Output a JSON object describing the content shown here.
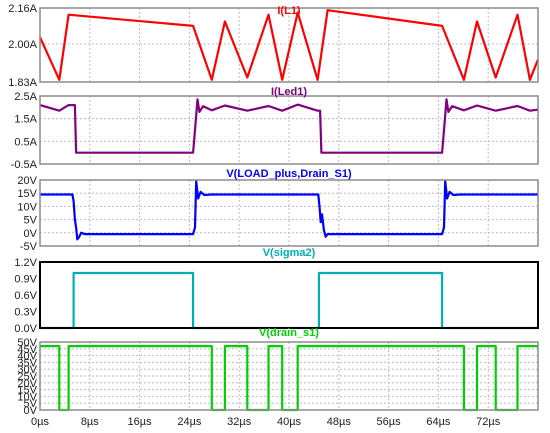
{
  "colors": {
    "background": "#ffffff",
    "grid": "#bdbdbd",
    "frame_default": "#8c8c8c",
    "frame_active": "#000000"
  },
  "chart_data": [
    {
      "type": "line",
      "title": "I(L1)",
      "color": "#ff0000",
      "ylim": [
        1.83,
        2.16
      ],
      "yticks": [
        1.83,
        2.0,
        2.16
      ],
      "yticklabels": [
        "1.83A",
        "2.00A",
        "2.16A"
      ],
      "grid": true,
      "x": [
        0,
        3.1,
        4.6,
        24.6,
        27.6,
        29.7,
        33.3,
        36.7,
        38.9,
        41.4,
        44.6,
        46.2,
        64.6,
        68.1,
        70.2,
        73.2,
        76.7,
        78.7,
        80.0
      ],
      "values": [
        2.03,
        1.84,
        2.13,
        2.08,
        1.84,
        2.1,
        1.85,
        2.13,
        1.84,
        2.14,
        1.84,
        2.15,
        2.08,
        1.84,
        2.1,
        1.85,
        2.13,
        1.84,
        1.93
      ]
    },
    {
      "type": "line",
      "title": "I(Led1)",
      "color": "#800080",
      "ylim": [
        -0.5,
        2.5
      ],
      "yticks": [
        -0.5,
        0.5,
        1.5,
        2.5
      ],
      "yticklabels": [
        "-0.5A",
        "0.5A",
        "1.5A",
        "2.5A"
      ],
      "grid": true,
      "x": [
        0,
        3.1,
        4.6,
        5.6,
        5.8,
        24.6,
        24.9,
        25.3,
        25.6,
        26.2,
        27.6,
        29.7,
        33.3,
        36.7,
        38.9,
        41.4,
        44.6,
        45.0,
        45.2,
        64.6,
        64.9,
        65.3,
        65.6,
        66.2,
        68.1,
        70.2,
        73.2,
        76.7,
        78.7,
        80.0
      ],
      "values": [
        2.1,
        1.85,
        2.1,
        2.1,
        0.0,
        0.0,
        1.0,
        2.35,
        1.8,
        2.05,
        1.87,
        2.08,
        1.85,
        2.06,
        1.85,
        2.12,
        1.85,
        1.85,
        0.0,
        0.0,
        1.0,
        2.35,
        1.8,
        2.05,
        1.87,
        2.08,
        1.85,
        2.06,
        1.85,
        1.9
      ]
    },
    {
      "type": "line",
      "title": "V(LOAD_plus,Drain_S1)",
      "color": "#0000ff",
      "ylim": [
        -5,
        20
      ],
      "yticks": [
        -5,
        0,
        5,
        10,
        15,
        20
      ],
      "yticklabels": [
        "-5V",
        "0V",
        "5V",
        "10V",
        "15V",
        "20V"
      ],
      "grid": true,
      "x": [
        0,
        5.2,
        5.4,
        5.6,
        5.8,
        6.0,
        6.3,
        6.6,
        7.2,
        24.6,
        24.9,
        25.1,
        25.4,
        25.8,
        26.4,
        27.5,
        44.7,
        44.9,
        45.1,
        45.3,
        45.6,
        45.9,
        46.2,
        46.8,
        64.6,
        64.9,
        65.1,
        65.4,
        65.8,
        66.4,
        67.5,
        80.0
      ],
      "values": [
        14.5,
        14.5,
        12.0,
        5.0,
        2.0,
        -2.5,
        -1.5,
        0.0,
        -0.5,
        -0.5,
        2.0,
        19.5,
        13.0,
        15.5,
        14.3,
        14.5,
        14.5,
        10.0,
        4.0,
        7.0,
        1.0,
        -1.5,
        -0.5,
        -0.5,
        -0.5,
        2.0,
        19.5,
        13.0,
        15.5,
        14.3,
        14.5,
        14.5
      ]
    },
    {
      "type": "line",
      "title": "V(sigma2)",
      "color": "#00b0b0",
      "ylim": [
        0,
        1.2
      ],
      "yticks": [
        0.0,
        0.3,
        0.6,
        0.9,
        1.2
      ],
      "yticklabels": [
        "0.0V",
        "0.3V",
        "0.6V",
        "0.9V",
        "1.2V"
      ],
      "grid": false,
      "x": [
        0,
        5.4,
        5.4,
        24.6,
        24.6,
        44.8,
        44.8,
        64.6,
        64.6,
        80.0
      ],
      "values": [
        0,
        0,
        1.0,
        1.0,
        0,
        0,
        1.0,
        1.0,
        0,
        0
      ]
    },
    {
      "type": "line",
      "title": "V(drain_s1)",
      "color": "#00d000",
      "ylim": [
        0,
        50
      ],
      "yticks": [
        0,
        5,
        10,
        15,
        20,
        25,
        30,
        35,
        40,
        45,
        50
      ],
      "yticklabels": [
        "0V",
        "5V",
        "10V",
        "15V",
        "20V",
        "25V",
        "30V",
        "35V",
        "40V",
        "45V",
        "50V"
      ],
      "grid": true,
      "x": [
        0,
        3.1,
        3.1,
        4.6,
        4.6,
        27.6,
        27.6,
        29.7,
        29.7,
        33.3,
        33.3,
        36.7,
        36.7,
        38.9,
        38.9,
        41.4,
        41.4,
        68.1,
        68.1,
        70.2,
        70.2,
        73.2,
        73.2,
        76.7,
        76.7,
        80.0
      ],
      "values": [
        47,
        47,
        0,
        0,
        47,
        47,
        0,
        0,
        47,
        47,
        0,
        0,
        47,
        47,
        0,
        0,
        47,
        47,
        0,
        0,
        47,
        47,
        0,
        0,
        47,
        47
      ]
    }
  ],
  "xaxis": {
    "xlim": [
      0,
      80
    ],
    "ticks": [
      0,
      8,
      16,
      24,
      32,
      40,
      48,
      56,
      64,
      72
    ],
    "ticklabels": [
      "0µs",
      "8µs",
      "16µs",
      "24µs",
      "32µs",
      "40µs",
      "48µs",
      "56µs",
      "64µs",
      "72µs"
    ]
  }
}
